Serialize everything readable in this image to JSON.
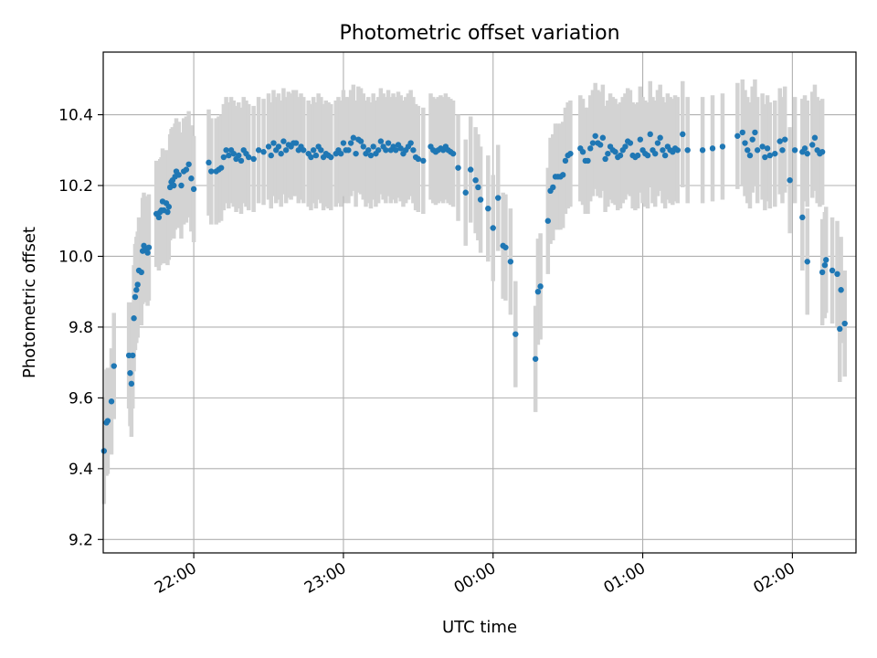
{
  "chart_data": {
    "type": "scatter",
    "title": "Photometric offset variation",
    "xlabel": "UTC time",
    "ylabel": "Photometric offset",
    "xlim": [
      -36.3,
      265.5
    ],
    "ylim": [
      9.162,
      10.577
    ],
    "yticks": [
      9.2,
      9.4,
      9.6,
      9.8,
      10.0,
      10.2,
      10.4
    ],
    "ytick_labels": [
      "9.2",
      "9.4",
      "9.6",
      "9.8",
      "10.0",
      "10.2",
      "10.4"
    ],
    "xticks": [
      0,
      60,
      120,
      180,
      240
    ],
    "xtick_labels": [
      "22:00",
      "23:00",
      "00:00",
      "01:00",
      "02:00"
    ],
    "grid": true,
    "colors": {
      "points": "#1f77b4",
      "errorbars": "#d3d3d3",
      "grid": "#b0b0b0"
    },
    "error_half_width": 0.15,
    "points": [
      [
        -36,
        9.45
      ],
      [
        -35,
        9.53
      ],
      [
        -34.5,
        9.535
      ],
      [
        -33,
        9.59
      ],
      [
        -32,
        9.69
      ],
      [
        -26,
        9.72
      ],
      [
        -25.5,
        9.67
      ],
      [
        -25,
        9.64
      ],
      [
        -24.5,
        9.72
      ],
      [
        -24,
        9.825
      ],
      [
        -23.5,
        9.885
      ],
      [
        -23,
        9.905
      ],
      [
        -22.5,
        9.92
      ],
      [
        -22,
        9.96
      ],
      [
        -21,
        9.955
      ],
      [
        -20.5,
        10.015
      ],
      [
        -20,
        10.03
      ],
      [
        -19,
        10.02
      ],
      [
        -18.5,
        10.01
      ],
      [
        -18,
        10.025
      ],
      [
        -15,
        10.12
      ],
      [
        -14,
        10.11
      ],
      [
        -13.5,
        10.125
      ],
      [
        -13,
        10.13
      ],
      [
        -12.5,
        10.155
      ],
      [
        -12,
        10.13
      ],
      [
        -11,
        10.15
      ],
      [
        -10.5,
        10.125
      ],
      [
        -10,
        10.14
      ],
      [
        -9.5,
        10.195
      ],
      [
        -9,
        10.21
      ],
      [
        -8.5,
        10.215
      ],
      [
        -8,
        10.2
      ],
      [
        -7.5,
        10.225
      ],
      [
        -7,
        10.24
      ],
      [
        -6,
        10.23
      ],
      [
        -5,
        10.2
      ],
      [
        -4,
        10.24
      ],
      [
        -3,
        10.245
      ],
      [
        -2,
        10.26
      ],
      [
        -1,
        10.22
      ],
      [
        0,
        10.19
      ],
      [
        6,
        10.265
      ],
      [
        7,
        10.24
      ],
      [
        9,
        10.24
      ],
      [
        10,
        10.245
      ],
      [
        11,
        10.25
      ],
      [
        12,
        10.28
      ],
      [
        13,
        10.3
      ],
      [
        14,
        10.285
      ],
      [
        15,
        10.3
      ],
      [
        16,
        10.29
      ],
      [
        17,
        10.275
      ],
      [
        18,
        10.285
      ],
      [
        19,
        10.27
      ],
      [
        20,
        10.3
      ],
      [
        21,
        10.29
      ],
      [
        22,
        10.28
      ],
      [
        24,
        10.275
      ],
      [
        26,
        10.3
      ],
      [
        28,
        10.295
      ],
      [
        30,
        10.31
      ],
      [
        31,
        10.285
      ],
      [
        32,
        10.32
      ],
      [
        33,
        10.3
      ],
      [
        34,
        10.31
      ],
      [
        35,
        10.29
      ],
      [
        36,
        10.325
      ],
      [
        37,
        10.3
      ],
      [
        38,
        10.315
      ],
      [
        39,
        10.31
      ],
      [
        40,
        10.32
      ],
      [
        41,
        10.32
      ],
      [
        42,
        10.3
      ],
      [
        43,
        10.31
      ],
      [
        44,
        10.3
      ],
      [
        46,
        10.29
      ],
      [
        47,
        10.28
      ],
      [
        48,
        10.3
      ],
      [
        49,
        10.285
      ],
      [
        50,
        10.31
      ],
      [
        51,
        10.3
      ],
      [
        52,
        10.28
      ],
      [
        53,
        10.29
      ],
      [
        54,
        10.285
      ],
      [
        55,
        10.28
      ],
      [
        57,
        10.29
      ],
      [
        58,
        10.3
      ],
      [
        59,
        10.29
      ],
      [
        60,
        10.32
      ],
      [
        61,
        10.3
      ],
      [
        62,
        10.3
      ],
      [
        63,
        10.32
      ],
      [
        64,
        10.335
      ],
      [
        65,
        10.29
      ],
      [
        66,
        10.33
      ],
      [
        67,
        10.325
      ],
      [
        68,
        10.31
      ],
      [
        69,
        10.29
      ],
      [
        70,
        10.3
      ],
      [
        71,
        10.285
      ],
      [
        72,
        10.31
      ],
      [
        73,
        10.29
      ],
      [
        74,
        10.3
      ],
      [
        75,
        10.325
      ],
      [
        76,
        10.31
      ],
      [
        77,
        10.3
      ],
      [
        78,
        10.32
      ],
      [
        79,
        10.3
      ],
      [
        80,
        10.31
      ],
      [
        81,
        10.3
      ],
      [
        82,
        10.315
      ],
      [
        83,
        10.305
      ],
      [
        84,
        10.29
      ],
      [
        85,
        10.3
      ],
      [
        86,
        10.31
      ],
      [
        87,
        10.32
      ],
      [
        88,
        10.3
      ],
      [
        89,
        10.28
      ],
      [
        90,
        10.275
      ],
      [
        92,
        10.27
      ],
      [
        95,
        10.31
      ],
      [
        96,
        10.3
      ],
      [
        97,
        10.295
      ],
      [
        98,
        10.3
      ],
      [
        99,
        10.305
      ],
      [
        100,
        10.3
      ],
      [
        101,
        10.31
      ],
      [
        102,
        10.3
      ],
      [
        103,
        10.295
      ],
      [
        104,
        10.29
      ],
      [
        106,
        10.25
      ],
      [
        109,
        10.18
      ],
      [
        111,
        10.245
      ],
      [
        113,
        10.215
      ],
      [
        114,
        10.195
      ],
      [
        115,
        10.16
      ],
      [
        118,
        10.135
      ],
      [
        120,
        10.08
      ],
      [
        122,
        10.165
      ],
      [
        124,
        10.03
      ],
      [
        125,
        10.025
      ],
      [
        127,
        9.985
      ],
      [
        129,
        9.78
      ],
      [
        137,
        9.71
      ],
      [
        138,
        9.9
      ],
      [
        139,
        9.915
      ],
      [
        142,
        10.1
      ],
      [
        143,
        10.185
      ],
      [
        144,
        10.195
      ],
      [
        145,
        10.225
      ],
      [
        146,
        10.225
      ],
      [
        147,
        10.225
      ],
      [
        148,
        10.23
      ],
      [
        149,
        10.27
      ],
      [
        150,
        10.285
      ],
      [
        151,
        10.29
      ],
      [
        155,
        10.305
      ],
      [
        156,
        10.295
      ],
      [
        157,
        10.27
      ],
      [
        158,
        10.27
      ],
      [
        159,
        10.305
      ],
      [
        160,
        10.32
      ],
      [
        161,
        10.34
      ],
      [
        162,
        10.32
      ],
      [
        163,
        10.315
      ],
      [
        164,
        10.335
      ],
      [
        165,
        10.275
      ],
      [
        166,
        10.29
      ],
      [
        167,
        10.31
      ],
      [
        168,
        10.3
      ],
      [
        169,
        10.295
      ],
      [
        170,
        10.28
      ],
      [
        171,
        10.285
      ],
      [
        172,
        10.3
      ],
      [
        173,
        10.31
      ],
      [
        174,
        10.325
      ],
      [
        175,
        10.32
      ],
      [
        176,
        10.285
      ],
      [
        177,
        10.28
      ],
      [
        178,
        10.285
      ],
      [
        179,
        10.33
      ],
      [
        180,
        10.3
      ],
      [
        181,
        10.29
      ],
      [
        182,
        10.285
      ],
      [
        183,
        10.345
      ],
      [
        184,
        10.3
      ],
      [
        185,
        10.29
      ],
      [
        186,
        10.32
      ],
      [
        187,
        10.335
      ],
      [
        188,
        10.3
      ],
      [
        189,
        10.285
      ],
      [
        190,
        10.31
      ],
      [
        191,
        10.3
      ],
      [
        192,
        10.295
      ],
      [
        193,
        10.305
      ],
      [
        194,
        10.3
      ],
      [
        196,
        10.345
      ],
      [
        198,
        10.3
      ],
      [
        204,
        10.3
      ],
      [
        208,
        10.305
      ],
      [
        212,
        10.31
      ],
      [
        218,
        10.34
      ],
      [
        220,
        10.35
      ],
      [
        221,
        10.32
      ],
      [
        222,
        10.3
      ],
      [
        223,
        10.285
      ],
      [
        224,
        10.33
      ],
      [
        225,
        10.35
      ],
      [
        226,
        10.3
      ],
      [
        228,
        10.31
      ],
      [
        229,
        10.28
      ],
      [
        230,
        10.305
      ],
      [
        231,
        10.285
      ],
      [
        233,
        10.29
      ],
      [
        235,
        10.325
      ],
      [
        236,
        10.3
      ],
      [
        237,
        10.33
      ],
      [
        241,
        10.3
      ],
      [
        244,
        10.295
      ],
      [
        245,
        10.305
      ],
      [
        246,
        10.29
      ],
      [
        248,
        10.315
      ],
      [
        249,
        10.335
      ],
      [
        250,
        10.3
      ],
      [
        251,
        10.29
      ],
      [
        252,
        10.295
      ],
      [
        239,
        10.215
      ],
      [
        244,
        10.11
      ],
      [
        246,
        9.985
      ],
      [
        252,
        9.955
      ],
      [
        253,
        9.975
      ],
      [
        253.5,
        9.99
      ],
      [
        256,
        9.96
      ],
      [
        258,
        9.95
      ],
      [
        259,
        9.795
      ],
      [
        259.5,
        9.905
      ],
      [
        261,
        9.81
      ]
    ]
  }
}
